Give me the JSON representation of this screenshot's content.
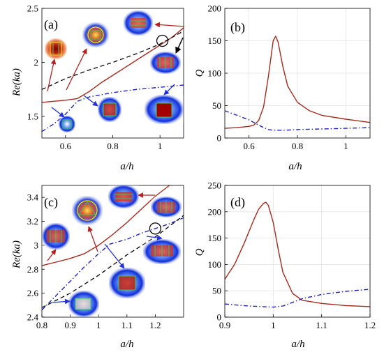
{
  "colors": {
    "solid": "#a52a1c",
    "dashdot": "#1f22c8",
    "dashed": "#000000",
    "arrow_red": "#b22222",
    "arrow_blue": "#2233dd",
    "arrow_black": "#000000"
  },
  "chart_data": [
    {
      "panel": "(a)",
      "type": "line",
      "xlabel": "a/h",
      "ylabel": "Re(ka)",
      "xlim": [
        0.5,
        1.1
      ],
      "ylim": [
        1.3,
        2.5
      ],
      "xticks": [
        0.6,
        0.8,
        1.0
      ],
      "xtick_labels": [
        "0.6",
        "0.8",
        "1"
      ],
      "yticks": [
        1.5,
        2.0,
        2.5
      ],
      "ytick_labels": [
        "1.5",
        "2",
        "2.5"
      ],
      "grid": false,
      "series": [
        {
          "style": "solid",
          "x": [
            0.5,
            0.55,
            0.6,
            0.65,
            0.7,
            0.75,
            0.8,
            0.85,
            0.9,
            0.95,
            1.0,
            1.05,
            1.1
          ],
          "y": [
            1.63,
            1.64,
            1.65,
            1.665,
            1.73,
            1.81,
            1.88,
            1.95,
            2.02,
            2.09,
            2.16,
            2.23,
            2.32
          ]
        },
        {
          "style": "dashdot",
          "x": [
            0.5,
            0.55,
            0.6,
            0.65,
            0.7,
            0.75,
            0.8,
            0.85,
            0.9,
            0.95,
            1.0,
            1.05,
            1.1
          ],
          "y": [
            1.36,
            1.43,
            1.52,
            1.64,
            1.68,
            1.7,
            1.72,
            1.735,
            1.75,
            1.76,
            1.77,
            1.78,
            1.79
          ]
        },
        {
          "style": "dashed",
          "x": [
            0.5,
            0.6,
            0.7,
            0.8,
            0.9,
            1.0,
            1.1
          ],
          "y": [
            1.75,
            1.85,
            1.93,
            2.0,
            2.08,
            2.17,
            2.29
          ]
        }
      ],
      "marker_circle": {
        "x": 1.01,
        "y": 2.2
      }
    },
    {
      "panel": "(b)",
      "type": "line",
      "xlabel": "a/h",
      "ylabel": "Q",
      "xlim": [
        0.5,
        1.1
      ],
      "ylim": [
        0,
        200
      ],
      "xticks": [
        0.6,
        0.8,
        1.0
      ],
      "xtick_labels": [
        "0.6",
        "0.8",
        "1"
      ],
      "yticks": [
        0,
        50,
        100,
        150,
        200
      ],
      "ytick_labels": [
        "0",
        "50",
        "100",
        "150",
        "200"
      ],
      "grid": true,
      "series": [
        {
          "style": "solid",
          "x": [
            0.5,
            0.55,
            0.6,
            0.62,
            0.64,
            0.66,
            0.68,
            0.7,
            0.71,
            0.72,
            0.74,
            0.76,
            0.8,
            0.85,
            0.9,
            1.0,
            1.1
          ],
          "y": [
            15,
            16,
            18,
            20,
            27,
            48,
            95,
            150,
            157,
            148,
            110,
            80,
            55,
            42,
            35,
            29,
            24
          ]
        },
        {
          "style": "dashdot",
          "x": [
            0.5,
            0.55,
            0.6,
            0.65,
            0.68,
            0.7,
            0.75,
            0.8,
            0.9,
            1.0,
            1.1
          ],
          "y": [
            42,
            35,
            28,
            18,
            13,
            12,
            12,
            13,
            14,
            15,
            16
          ]
        }
      ]
    },
    {
      "panel": "(c)",
      "type": "line",
      "xlabel": "a/h",
      "ylabel": "Re(ka)",
      "xlim": [
        0.8,
        1.3
      ],
      "ylim": [
        2.4,
        3.5
      ],
      "xticks": [
        0.8,
        0.9,
        1.0,
        1.1,
        1.2
      ],
      "xtick_labels": [
        "0.8",
        "0.9",
        "1",
        "1.1",
        "1.2"
      ],
      "yticks": [
        2.4,
        2.6,
        2.8,
        3.0,
        3.2,
        3.4
      ],
      "ytick_labels": [
        "2.4",
        "2.6",
        "2.8",
        "3",
        "3.2",
        "3.4"
      ],
      "grid": false,
      "series": [
        {
          "style": "solid",
          "x": [
            0.8,
            0.85,
            0.9,
            0.95,
            1.0,
            1.05,
            1.1,
            1.15,
            1.2,
            1.25
          ],
          "y": [
            2.83,
            2.86,
            2.89,
            2.93,
            3.0,
            3.09,
            3.19,
            3.3,
            3.41,
            3.5
          ]
        },
        {
          "style": "dashdot",
          "x": [
            0.8,
            0.85,
            0.9,
            0.95,
            1.0,
            1.04,
            1.1,
            1.15,
            1.2,
            1.25,
            1.3
          ],
          "y": [
            2.46,
            2.58,
            2.7,
            2.82,
            2.93,
            3.01,
            3.05,
            3.1,
            3.14,
            3.18,
            3.23
          ]
        },
        {
          "style": "dashed",
          "x": [
            0.8,
            0.9,
            1.0,
            1.1,
            1.2,
            1.3
          ],
          "y": [
            2.48,
            2.6,
            2.75,
            2.92,
            3.07,
            3.25
          ]
        }
      ],
      "marker_circle": {
        "x": 1.2,
        "y": 3.14
      }
    },
    {
      "panel": "(d)",
      "type": "line",
      "xlabel": "a/h",
      "ylabel": "Q",
      "xlim": [
        0.9,
        1.2
      ],
      "ylim": [
        0,
        250
      ],
      "xticks": [
        0.9,
        1.0,
        1.1,
        1.2
      ],
      "xtick_labels": [
        "0.9",
        "1",
        "1.1",
        "1.2"
      ],
      "yticks": [
        0,
        50,
        100,
        150,
        200,
        250
      ],
      "ytick_labels": [
        "0",
        "50",
        "100",
        "150",
        "200",
        "250"
      ],
      "grid": true,
      "series": [
        {
          "style": "solid",
          "x": [
            0.9,
            0.92,
            0.94,
            0.96,
            0.97,
            0.98,
            0.985,
            0.99,
            1.0,
            1.01,
            1.02,
            1.04,
            1.06,
            1.1,
            1.15,
            1.2
          ],
          "y": [
            72,
            100,
            140,
            185,
            205,
            216,
            218,
            212,
            180,
            130,
            85,
            45,
            32,
            26,
            22,
            20
          ]
        },
        {
          "style": "dashdot",
          "x": [
            0.9,
            0.95,
            1.0,
            1.02,
            1.04,
            1.06,
            1.1,
            1.15,
            1.2
          ],
          "y": [
            25,
            21,
            19,
            21,
            28,
            35,
            43,
            49,
            53
          ]
        }
      ]
    }
  ]
}
